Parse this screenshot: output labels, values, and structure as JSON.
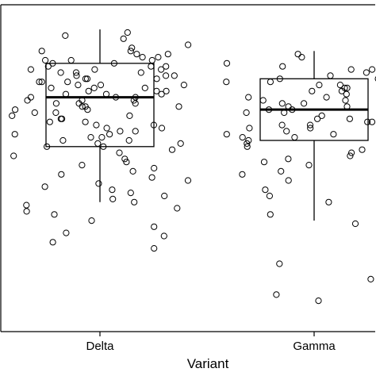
{
  "chart_data": {
    "type": "box",
    "xlabel": "Variant",
    "ylabel": "",
    "categories": [
      "Delta",
      "Gamma"
    ],
    "boxes": [
      {
        "category": "Delta",
        "whisker_low": 0.44,
        "q1": 0.62,
        "median": 0.78,
        "q3": 0.89,
        "whisker_high": 1.0,
        "points": [
          0.99,
          0.98,
          0.97,
          0.95,
          0.94,
          0.93,
          0.93,
          0.92,
          0.92,
          0.91,
          0.91,
          0.9,
          0.9,
          0.9,
          0.89,
          0.89,
          0.88,
          0.88,
          0.88,
          0.87,
          0.87,
          0.87,
          0.86,
          0.86,
          0.86,
          0.85,
          0.85,
          0.85,
          0.84,
          0.84,
          0.84,
          0.83,
          0.83,
          0.83,
          0.82,
          0.82,
          0.82,
          0.81,
          0.81,
          0.81,
          0.8,
          0.8,
          0.8,
          0.79,
          0.79,
          0.79,
          0.78,
          0.78,
          0.78,
          0.77,
          0.77,
          0.77,
          0.76,
          0.76,
          0.76,
          0.75,
          0.75,
          0.75,
          0.74,
          0.74,
          0.73,
          0.73,
          0.72,
          0.72,
          0.71,
          0.71,
          0.7,
          0.7,
          0.69,
          0.69,
          0.68,
          0.68,
          0.67,
          0.67,
          0.66,
          0.66,
          0.65,
          0.65,
          0.64,
          0.64,
          0.63,
          0.63,
          0.62,
          0.62,
          0.61,
          0.6,
          0.59,
          0.58,
          0.57,
          0.56,
          0.55,
          0.54,
          0.53,
          0.52,
          0.51,
          0.5,
          0.49,
          0.48,
          0.47,
          0.46,
          0.45,
          0.44,
          0.43,
          0.42,
          0.41,
          0.4,
          0.38,
          0.36,
          0.34,
          0.33,
          0.31,
          0.29
        ]
      },
      {
        "category": "Gamma",
        "whisker_low": 0.38,
        "q1": 0.64,
        "median": 0.74,
        "q3": 0.84,
        "whisker_high": 0.93,
        "points": [
          0.92,
          0.91,
          0.89,
          0.88,
          0.87,
          0.87,
          0.86,
          0.85,
          0.85,
          0.84,
          0.84,
          0.83,
          0.83,
          0.82,
          0.82,
          0.81,
          0.81,
          0.8,
          0.8,
          0.79,
          0.79,
          0.78,
          0.78,
          0.77,
          0.77,
          0.76,
          0.76,
          0.75,
          0.75,
          0.74,
          0.74,
          0.73,
          0.73,
          0.72,
          0.72,
          0.71,
          0.71,
          0.7,
          0.7,
          0.69,
          0.69,
          0.68,
          0.68,
          0.67,
          0.67,
          0.66,
          0.66,
          0.65,
          0.65,
          0.64,
          0.63,
          0.62,
          0.61,
          0.6,
          0.59,
          0.58,
          0.57,
          0.56,
          0.55,
          0.54,
          0.53,
          0.52,
          0.51,
          0.5,
          0.48,
          0.46,
          0.44,
          0.42,
          0.4,
          0.37,
          0.24,
          0.19,
          0.14,
          0.12
        ]
      }
    ],
    "ylim": [
      0.02,
      1.08
    ],
    "grid": false,
    "legend": "none",
    "colors": {
      "stroke": "#000000",
      "background": "#ffffff"
    }
  }
}
